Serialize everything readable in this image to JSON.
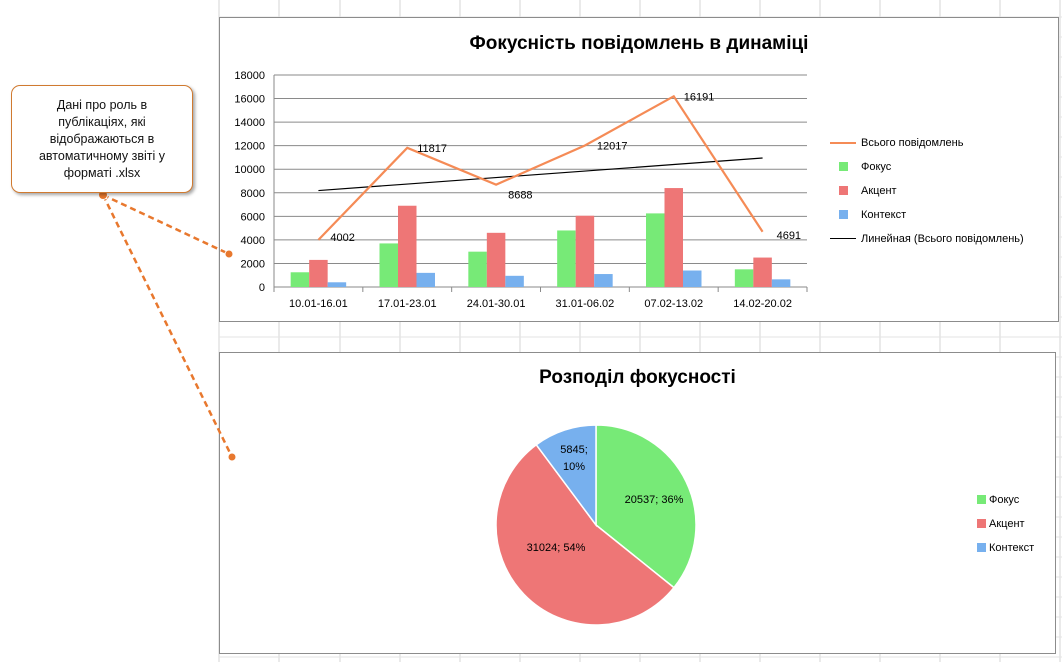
{
  "callout": {
    "text": "Дані про роль в публікаціях, які відображаються в автоматичному звіті у форматі .xlsx"
  },
  "colors": {
    "focus": "#77ea77",
    "accent": "#ee7676",
    "context": "#77b0ee",
    "total": "#f58b56",
    "trend": "#000000",
    "callout_accent": "#e8782e"
  },
  "chart_data": [
    {
      "type": "bar",
      "title": "Фокусність повідомлень в динаміці",
      "categories": [
        "10.01-16.01",
        "17.01-23.01",
        "24.01-30.01",
        "31.01-06.02",
        "07.02-13.02",
        "14.02-20.02"
      ],
      "ylim": [
        0,
        18000
      ],
      "yticks": [
        0,
        2000,
        4000,
        6000,
        8000,
        10000,
        12000,
        14000,
        16000,
        18000
      ],
      "grid": true,
      "legend_position": "right",
      "series": [
        {
          "name": "Фокус",
          "type": "bar",
          "color": "#77ea77",
          "values": [
            1250,
            3700,
            3000,
            4800,
            6250,
            1500
          ]
        },
        {
          "name": "Акцент",
          "type": "bar",
          "color": "#ee7676",
          "values": [
            2300,
            6900,
            4600,
            6050,
            8400,
            2500
          ]
        },
        {
          "name": "Контекст",
          "type": "bar",
          "color": "#77b0ee",
          "values": [
            400,
            1200,
            950,
            1100,
            1400,
            650
          ]
        },
        {
          "name": "Всього повідомлень",
          "type": "line",
          "color": "#f58b56",
          "values": [
            4002,
            11817,
            8688,
            12017,
            16191,
            4691
          ],
          "data_labels": [
            "4002",
            "11817",
            "8688",
            "12017",
            "16191",
            "4691"
          ]
        },
        {
          "name": "Линейная (Всього повідомлень)",
          "type": "trendline",
          "color": "#000000",
          "values": [
            8190,
            8742,
            9294,
            9846,
            10398,
            10950
          ]
        }
      ]
    },
    {
      "type": "pie",
      "title": "Розподіл фокусності",
      "legend_position": "right",
      "slices": [
        {
          "name": "Фокус",
          "value": 20537,
          "percent": 36,
          "color": "#77ea77",
          "label": "20537; 36%"
        },
        {
          "name": "Акцент",
          "value": 31024,
          "percent": 54,
          "color": "#ee7676",
          "label": "31024; 54%"
        },
        {
          "name": "Контекст",
          "value": 5845,
          "percent": 10,
          "color": "#77b0ee",
          "label_lines": [
            "5845;",
            "10%"
          ]
        }
      ]
    }
  ]
}
